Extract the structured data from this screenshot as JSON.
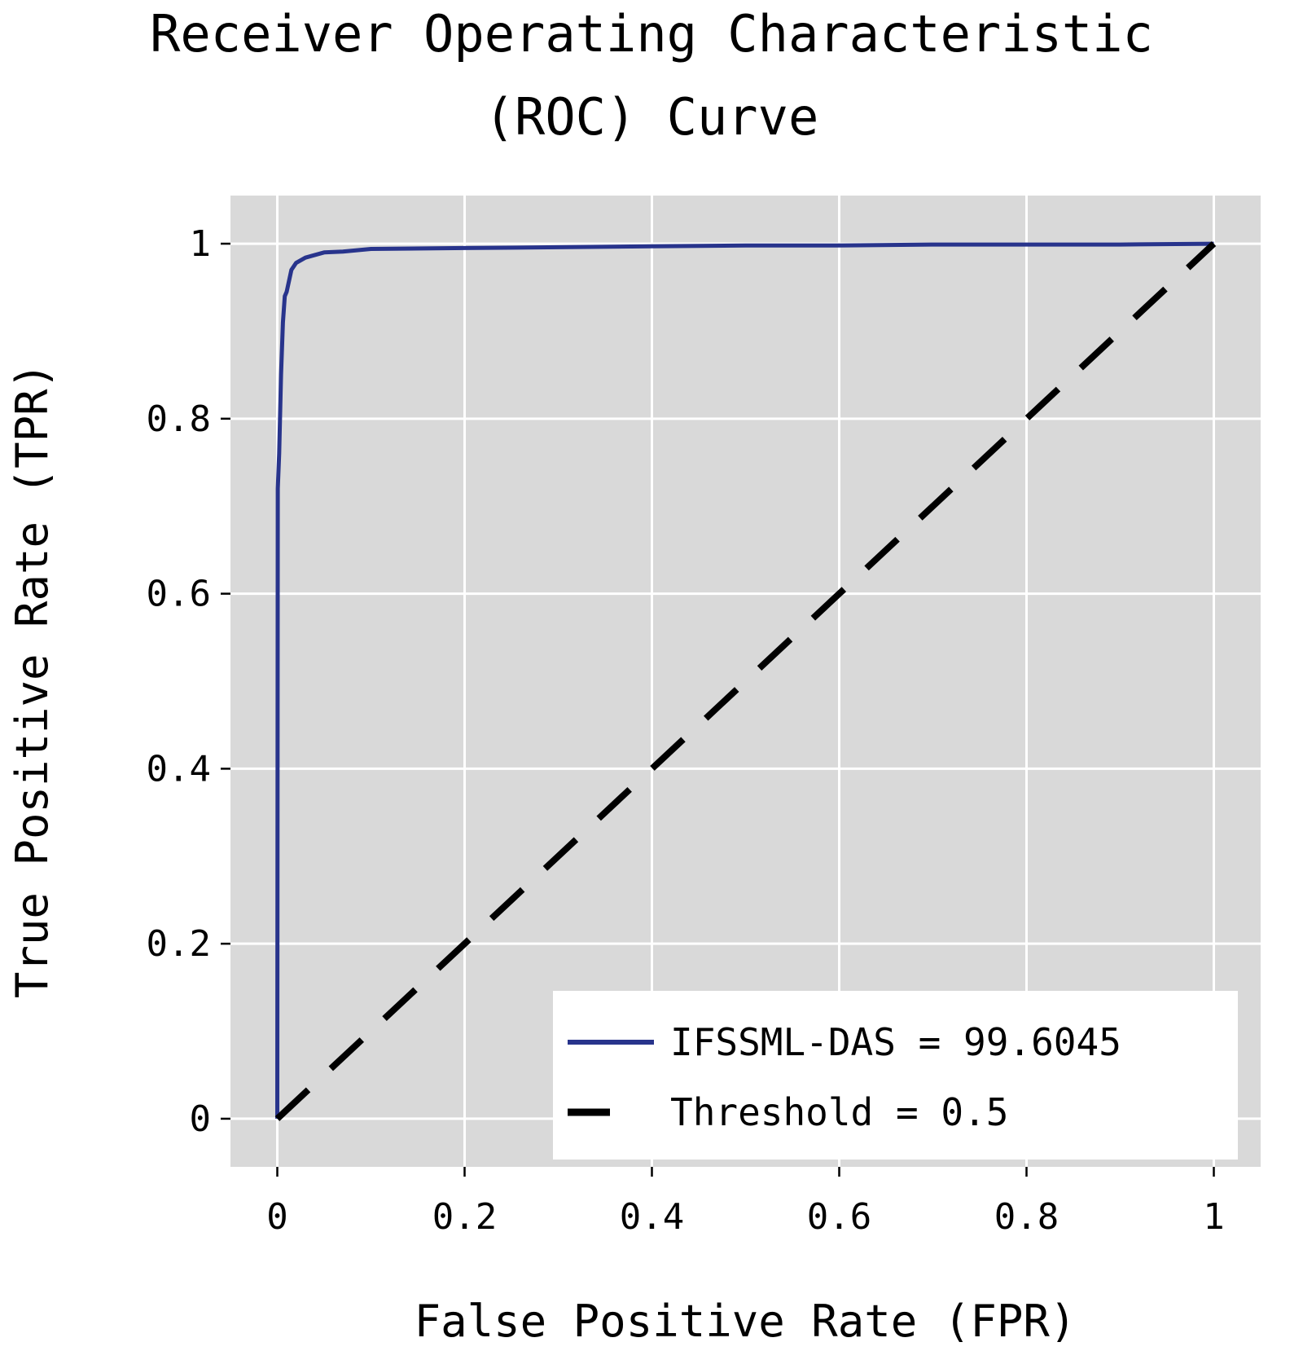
{
  "chart_data": {
    "type": "line",
    "title_lines": [
      "Receiver Operating Characteristic",
      "(ROC) Curve"
    ],
    "xlabel": "False Positive Rate (FPR)",
    "ylabel": "True Positive Rate (TPR)",
    "xlim": [
      -0.05,
      1.05
    ],
    "ylim": [
      -0.055,
      1.055
    ],
    "grid": true,
    "x_ticks": [
      0,
      0.2,
      0.4,
      0.6,
      0.8,
      1
    ],
    "x_tick_labels": [
      "0",
      "0.2",
      "0.4",
      "0.6",
      "0.8",
      "1"
    ],
    "y_ticks": [
      0,
      0.2,
      0.4,
      0.6,
      0.8,
      1
    ],
    "y_tick_labels": [
      "0",
      "0.2",
      "0.4",
      "0.6",
      "0.8",
      "1"
    ],
    "legend_position": "bottom-right",
    "series": [
      {
        "name": "IFSSML-DAS = 99.6045",
        "style": "solid",
        "color": "#28348c",
        "x": [
          0,
          0.0005,
          0.002,
          0.004,
          0.006,
          0.008,
          0.01,
          0.015,
          0.02,
          0.03,
          0.05,
          0.07,
          0.1,
          0.2,
          0.3,
          0.4,
          0.5,
          0.6,
          0.7,
          0.8,
          0.9,
          1.0
        ],
        "y": [
          0,
          0.72,
          0.76,
          0.85,
          0.91,
          0.94,
          0.945,
          0.97,
          0.978,
          0.984,
          0.99,
          0.991,
          0.994,
          0.995,
          0.996,
          0.997,
          0.998,
          0.998,
          0.999,
          0.999,
          0.999,
          1.0
        ]
      },
      {
        "name": "Threshold = 0.5",
        "style": "dashed",
        "color": "#000000",
        "x": [
          0,
          1
        ],
        "y": [
          0,
          1
        ]
      }
    ]
  },
  "colors": {
    "plot_background": "#d9d9d9",
    "grid": "#ffffff",
    "legend_background": "#ffffff"
  }
}
